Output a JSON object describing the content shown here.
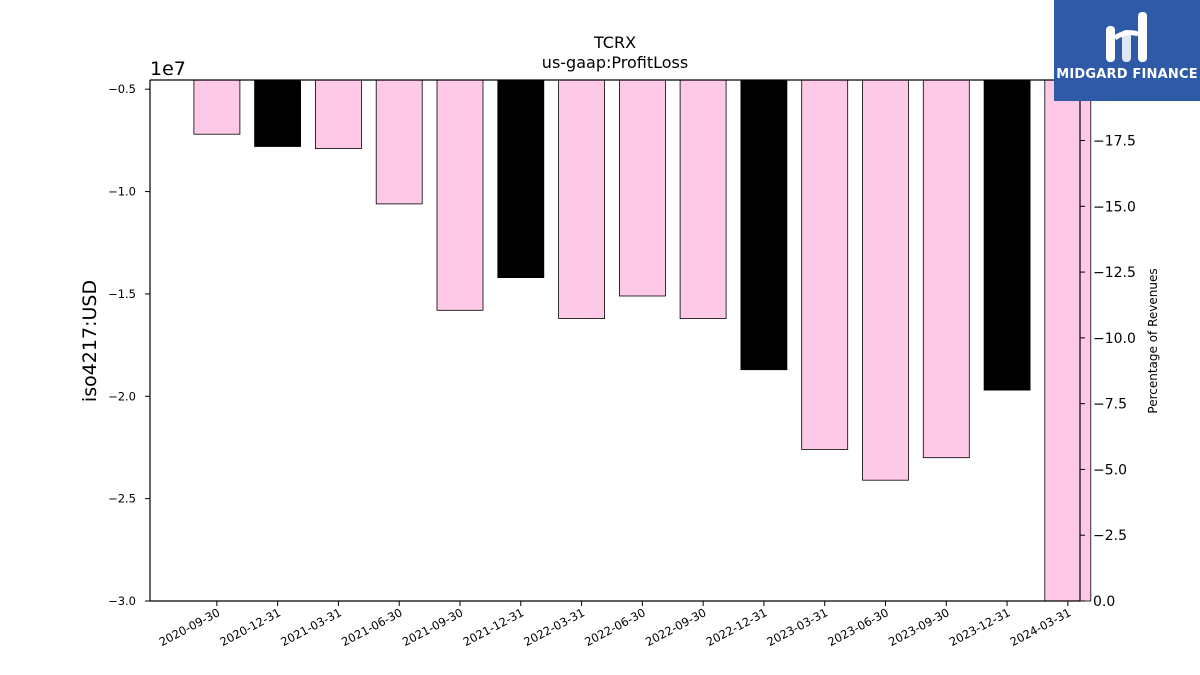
{
  "brand": {
    "name": "MIDGARD FINANCE",
    "bg_color": "#2e5aa8"
  },
  "chart_data": {
    "type": "bar",
    "title": "TCRX",
    "subtitle": "us-gaap:ProfitLoss",
    "ylabel": "iso4217:USD",
    "y2label": "Percentage of Revenues",
    "y_offset_label": "1e7",
    "categories": [
      "2020-09-30",
      "2020-12-31",
      "2021-03-31",
      "2021-06-30",
      "2021-09-30",
      "2021-12-31",
      "2022-03-31",
      "2022-06-30",
      "2022-09-30",
      "2022-12-31",
      "2023-03-31",
      "2023-06-30",
      "2023-09-30",
      "2023-12-31",
      "2024-03-31"
    ],
    "values": [
      -0.72,
      -0.78,
      -0.79,
      -1.06,
      -1.58,
      -1.42,
      -1.62,
      -1.51,
      -1.62,
      -1.87,
      -2.26,
      -2.41,
      -2.3,
      -1.97,
      -3.0
    ],
    "colors": [
      "#fdc9e6",
      "#000000",
      "#fdc9e6",
      "#fdc9e6",
      "#fdc9e6",
      "#000000",
      "#fdc9e6",
      "#fdc9e6",
      "#fdc9e6",
      "#000000",
      "#fdc9e6",
      "#fdc9e6",
      "#fdc9e6",
      "#000000",
      "#fdc9e6"
    ],
    "ylim": [
      -3.0,
      -0.455
    ],
    "yticks": [
      -0.5,
      -1.0,
      -1.5,
      -2.0,
      -2.5,
      -3.0
    ],
    "ytick_labels": [
      "−0.5",
      "−1.0",
      "−1.5",
      "−2.0",
      "−2.5",
      "−3.0"
    ],
    "y2lim": [
      0.0,
      -19.8
    ],
    "y2ticks": [
      -17.5,
      -15.0,
      -12.5,
      -10.0,
      -7.5,
      -5.0,
      -2.5,
      0.0
    ],
    "y2tick_labels": [
      "−17.5",
      "−15.0",
      "−12.5",
      "−10.0",
      "−7.5",
      "−5.0",
      "−2.5",
      "0.0"
    ],
    "grid": false
  }
}
